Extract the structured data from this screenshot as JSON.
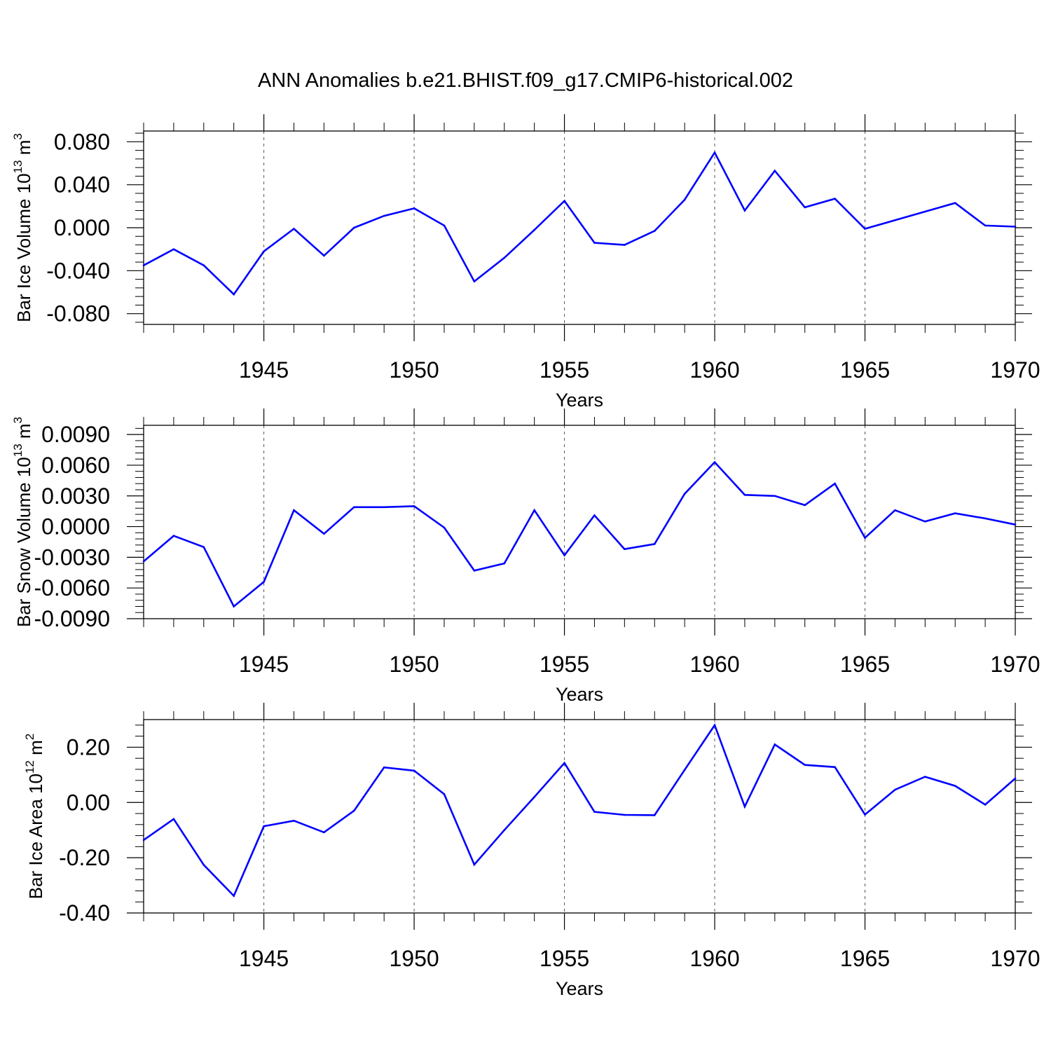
{
  "chart_data": {
    "title": "ANN Anomalies b.e21.BHIST.f09_g17.CMIP6-historical.002",
    "panels": [
      {
        "type": "line",
        "ylabel": "Bar Ice Volume 10",
        "ylabel_exp": "13",
        "ylabel_unit": " m",
        "ylabel_unit_exp": "3",
        "xlabel": "Years",
        "xlim": [
          1941,
          1970
        ],
        "ylim": [
          -0.09,
          0.09
        ],
        "yticks": [
          "0.080",
          "0.040",
          "0.000",
          "-0.040",
          "-0.080"
        ],
        "yticks_values": [
          0.08,
          0.04,
          0.0,
          -0.04,
          -0.08
        ],
        "xticks": [
          "1945",
          "1950",
          "1955",
          "1960",
          "1965",
          "1970"
        ],
        "xticks_values": [
          1945,
          1950,
          1955,
          1960,
          1965,
          1970
        ],
        "series": [
          {
            "name": "Bar Ice Volume",
            "color": "#0000ff",
            "x": [
              1941,
              1942,
              1943,
              1944,
              1945,
              1946,
              1947,
              1948,
              1949,
              1950,
              1951,
              1952,
              1953,
              1954,
              1955,
              1956,
              1957,
              1958,
              1959,
              1960,
              1961,
              1962,
              1963,
              1964,
              1965,
              1966,
              1967,
              1968,
              1969,
              1970
            ],
            "values": [
              -0.035,
              -0.02,
              -0.035,
              -0.062,
              -0.022,
              -0.001,
              -0.026,
              0.0,
              0.011,
              0.018,
              0.002,
              -0.05,
              -0.028,
              -0.002,
              0.025,
              -0.014,
              -0.016,
              -0.003,
              0.026,
              0.07,
              0.016,
              0.053,
              0.019,
              0.027,
              -0.001,
              0.007,
              0.015,
              0.023,
              0.002,
              0.001
            ]
          }
        ]
      },
      {
        "type": "line",
        "ylabel": "Bar Snow Volume 10",
        "ylabel_exp": "13",
        "ylabel_unit": " m",
        "ylabel_unit_exp": "3",
        "xlabel": "Years",
        "xlim": [
          1941,
          1970
        ],
        "ylim": [
          -0.009,
          0.0099
        ],
        "yticks": [
          "0.0090",
          "0.0060",
          "0.0030",
          "0.0000",
          "-0.0030",
          "-0.0060",
          "-0.0090"
        ],
        "yticks_values": [
          0.009,
          0.006,
          0.003,
          0.0,
          -0.003,
          -0.006,
          -0.009
        ],
        "xticks": [
          "1945",
          "1950",
          "1955",
          "1960",
          "1965",
          "1970"
        ],
        "xticks_values": [
          1945,
          1950,
          1955,
          1960,
          1965,
          1970
        ],
        "series": [
          {
            "name": "Bar Snow Volume",
            "color": "#0000ff",
            "x": [
              1941,
              1942,
              1943,
              1944,
              1945,
              1946,
              1947,
              1948,
              1949,
              1950,
              1951,
              1952,
              1953,
              1954,
              1955,
              1956,
              1957,
              1958,
              1959,
              1960,
              1961,
              1962,
              1963,
              1964,
              1965,
              1966,
              1967,
              1968,
              1969,
              1970
            ],
            "values": [
              -0.0034,
              -0.0009,
              -0.002,
              -0.0078,
              -0.0054,
              0.0016,
              -0.0007,
              0.0019,
              0.0019,
              0.002,
              -0.0001,
              -0.0043,
              -0.0036,
              0.0016,
              -0.0028,
              0.0011,
              -0.0022,
              -0.0017,
              0.0032,
              0.0063,
              0.0031,
              0.003,
              0.0021,
              0.0042,
              -0.0011,
              0.0016,
              0.0005,
              0.0013,
              0.0008,
              0.0002
            ]
          }
        ]
      },
      {
        "type": "line",
        "ylabel": "Bar Ice Area 10",
        "ylabel_exp": "12",
        "ylabel_unit": " m",
        "ylabel_unit_exp": "2",
        "xlabel": "Years",
        "xlim": [
          1941,
          1970
        ],
        "ylim": [
          -0.4,
          0.3
        ],
        "yticks": [
          "0.20",
          "0.00",
          "-0.20",
          "-0.40"
        ],
        "yticks_values": [
          0.2,
          0.0,
          -0.2,
          -0.4
        ],
        "xticks": [
          "1945",
          "1950",
          "1955",
          "1960",
          "1965",
          "1970"
        ],
        "xticks_values": [
          1945,
          1950,
          1955,
          1960,
          1965,
          1970
        ],
        "series": [
          {
            "name": "Bar Ice Area",
            "color": "#0000ff",
            "x": [
              1941,
              1942,
              1943,
              1944,
              1945,
              1946,
              1947,
              1948,
              1949,
              1950,
              1951,
              1952,
              1953,
              1954,
              1955,
              1956,
              1957,
              1958,
              1959,
              1960,
              1961,
              1962,
              1963,
              1964,
              1965,
              1966,
              1967,
              1968,
              1969,
              1970
            ],
            "values": [
              -0.136,
              -0.06,
              -0.226,
              -0.338,
              -0.086,
              -0.066,
              -0.108,
              -0.03,
              0.127,
              0.115,
              0.03,
              -0.225,
              -0.1,
              0.02,
              0.143,
              -0.034,
              -0.045,
              -0.046,
              0.118,
              0.28,
              -0.015,
              0.21,
              0.136,
              0.128,
              -0.044,
              0.046,
              0.093,
              0.06,
              -0.008,
              0.087
            ]
          }
        ]
      }
    ]
  }
}
